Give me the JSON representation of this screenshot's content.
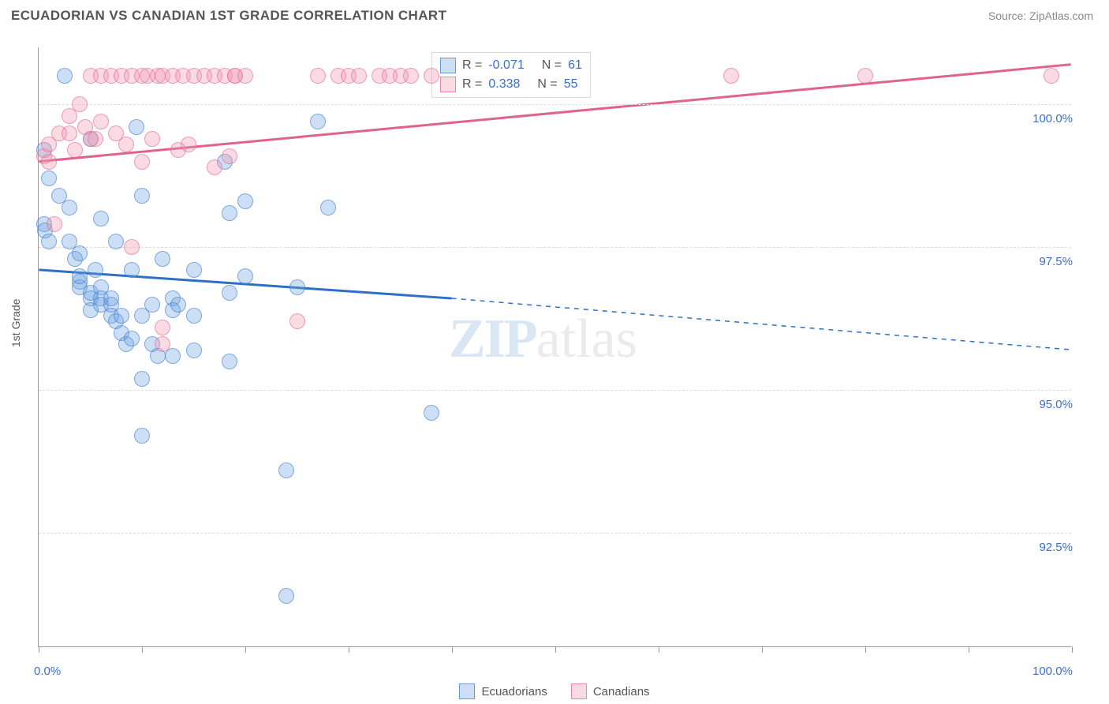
{
  "header": {
    "title": "ECUADORIAN VS CANADIAN 1ST GRADE CORRELATION CHART",
    "source": "Source: ZipAtlas.com"
  },
  "chart": {
    "type": "scatter",
    "ylabel": "1st Grade",
    "xlim": [
      0,
      100
    ],
    "ylim": [
      90.5,
      101.0
    ],
    "xtick_positions": [
      0,
      10,
      20,
      30,
      40,
      50,
      60,
      70,
      80,
      90,
      100
    ],
    "xtick_labels_shown": {
      "0": "0.0%",
      "100": "100.0%"
    },
    "ytick_positions": [
      92.5,
      95.0,
      97.5,
      100.0
    ],
    "ytick_labels": [
      "92.5%",
      "95.0%",
      "97.5%",
      "100.0%"
    ],
    "grid_color": "#dcdcdc",
    "axis_color": "#999999",
    "background_color": "#ffffff",
    "marker_radius": 10,
    "series": [
      {
        "key": "ecuadorians",
        "label": "Ecuadorians",
        "color_fill": "rgba(108,162,225,0.35)",
        "color_stroke": "rgba(60,120,200,0.7)",
        "R": "-0.071",
        "N": "61",
        "trend": {
          "x1": 0,
          "y1": 97.1,
          "x2_solid": 40,
          "y2_solid": 96.6,
          "x2": 100,
          "y2": 95.7,
          "stroke": "#2f6fc7",
          "width": 3
        },
        "points": [
          [
            0.5,
            97.9
          ],
          [
            0.6,
            97.8
          ],
          [
            1,
            97.6
          ],
          [
            0.5,
            99.2
          ],
          [
            1,
            98.7
          ],
          [
            2,
            98.4
          ],
          [
            2.5,
            100.5
          ],
          [
            3,
            98.2
          ],
          [
            3,
            97.6
          ],
          [
            3.5,
            97.3
          ],
          [
            4,
            97.4
          ],
          [
            4,
            96.9
          ],
          [
            4,
            96.8
          ],
          [
            4,
            97.0
          ],
          [
            5,
            99.4
          ],
          [
            5,
            96.6
          ],
          [
            5,
            96.7
          ],
          [
            5,
            96.4
          ],
          [
            5.5,
            97.1
          ],
          [
            6,
            96.8
          ],
          [
            6,
            96.6
          ],
          [
            6,
            96.5
          ],
          [
            6,
            98.0
          ],
          [
            7,
            96.5
          ],
          [
            7,
            96.6
          ],
          [
            7,
            96.3
          ],
          [
            7.5,
            97.6
          ],
          [
            7.5,
            96.2
          ],
          [
            8,
            96.3
          ],
          [
            8,
            96.0
          ],
          [
            8.5,
            95.8
          ],
          [
            9,
            97.1
          ],
          [
            9,
            95.9
          ],
          [
            9.5,
            99.6
          ],
          [
            10,
            98.4
          ],
          [
            10,
            96.3
          ],
          [
            10,
            95.2
          ],
          [
            10,
            94.2
          ],
          [
            11,
            96.5
          ],
          [
            11,
            95.8
          ],
          [
            11.5,
            95.6
          ],
          [
            12,
            97.3
          ],
          [
            13,
            96.6
          ],
          [
            13,
            96.4
          ],
          [
            13,
            95.6
          ],
          [
            13.5,
            96.5
          ],
          [
            15,
            96.3
          ],
          [
            15,
            95.7
          ],
          [
            15,
            97.1
          ],
          [
            18,
            99.0
          ],
          [
            18.5,
            98.1
          ],
          [
            18.5,
            96.7
          ],
          [
            18.5,
            95.5
          ],
          [
            20,
            98.3
          ],
          [
            20,
            97.0
          ],
          [
            24,
            93.6
          ],
          [
            24,
            91.4
          ],
          [
            25,
            96.8
          ],
          [
            27,
            99.7
          ],
          [
            28,
            98.2
          ],
          [
            38,
            94.6
          ]
        ]
      },
      {
        "key": "canadians",
        "label": "Canadians",
        "color_fill": "rgba(240,150,175,0.35)",
        "color_stroke": "rgba(225,100,140,0.7)",
        "R": "0.338",
        "N": "55",
        "trend": {
          "x1": 0,
          "y1": 99.0,
          "x2_solid": 100,
          "y2_solid": 100.7,
          "x2": 100,
          "y2": 100.7,
          "stroke": "#e1628b",
          "width": 3
        },
        "points": [
          [
            0.5,
            99.1
          ],
          [
            1,
            99.0
          ],
          [
            1,
            99.3
          ],
          [
            1.5,
            97.9
          ],
          [
            2,
            99.5
          ],
          [
            3,
            99.5
          ],
          [
            3,
            99.8
          ],
          [
            3.5,
            99.2
          ],
          [
            4,
            100.0
          ],
          [
            4.5,
            99.6
          ],
          [
            5,
            99.4
          ],
          [
            5,
            100.5
          ],
          [
            5.5,
            99.4
          ],
          [
            6,
            99.7
          ],
          [
            6,
            100.5
          ],
          [
            7,
            100.5
          ],
          [
            7.5,
            99.5
          ],
          [
            8,
            100.5
          ],
          [
            8.5,
            99.3
          ],
          [
            9,
            97.5
          ],
          [
            9,
            100.5
          ],
          [
            10,
            100.5
          ],
          [
            10,
            99.0
          ],
          [
            10.5,
            100.5
          ],
          [
            11,
            99.4
          ],
          [
            11.5,
            100.5
          ],
          [
            12,
            95.8
          ],
          [
            12,
            96.1
          ],
          [
            12,
            100.5
          ],
          [
            13,
            100.5
          ],
          [
            13.5,
            99.2
          ],
          [
            14,
            100.5
          ],
          [
            14.5,
            99.3
          ],
          [
            15,
            100.5
          ],
          [
            16,
            100.5
          ],
          [
            17,
            100.5
          ],
          [
            17,
            98.9
          ],
          [
            18,
            100.5
          ],
          [
            18.5,
            99.1
          ],
          [
            19,
            100.5
          ],
          [
            19,
            100.5
          ],
          [
            20,
            100.5
          ],
          [
            25,
            96.2
          ],
          [
            27,
            100.5
          ],
          [
            29,
            100.5
          ],
          [
            30,
            100.5
          ],
          [
            31,
            100.5
          ],
          [
            33,
            100.5
          ],
          [
            34,
            100.5
          ],
          [
            35,
            100.5
          ],
          [
            38,
            100.5
          ],
          [
            67,
            100.5
          ],
          [
            80,
            100.5
          ],
          [
            98,
            100.5
          ],
          [
            36,
            100.5
          ]
        ]
      }
    ]
  },
  "legend_top": {
    "rows": [
      {
        "swatch": "blue",
        "r_label": "R =",
        "r_value": "-0.071",
        "n_label": "N =",
        "n_value": "61"
      },
      {
        "swatch": "pink",
        "r_label": "R =",
        "r_value": "0.338",
        "n_label": "N =",
        "n_value": "55"
      }
    ]
  },
  "legend_bottom": {
    "items": [
      {
        "swatch": "blue",
        "label": "Ecuadorians"
      },
      {
        "swatch": "pink",
        "label": "Canadians"
      }
    ]
  },
  "watermark": {
    "text_a": "ZIP",
    "text_b": "atlas"
  }
}
